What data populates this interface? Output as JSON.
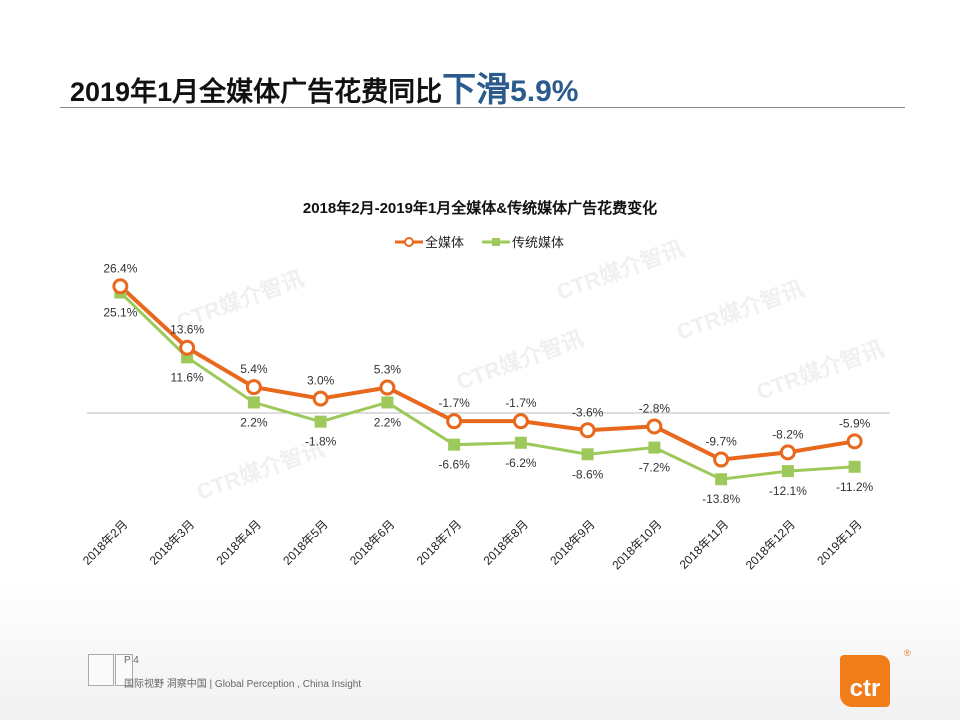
{
  "slide": {
    "title_main": "2019年1月全媒体广告花费同比",
    "title_highlight": "下滑",
    "title_value": "5.9%",
    "page": "P 4",
    "tagline": "国际视野 洞察中国 | Global Perception , China Insight",
    "logo": "ctr",
    "logo_mark": "®",
    "watermark": "CTR媒介智讯"
  },
  "chart_data": {
    "type": "line",
    "title": "2018年2月-2019年1月全媒体&传统媒体广告花费变化",
    "categories": [
      "2018年2月",
      "2018年3月",
      "2018年4月",
      "2018年5月",
      "2018年6月",
      "2018年7月",
      "2018年8月",
      "2018年9月",
      "2018年10月",
      "2018年11月",
      "2018年12月",
      "2019年1月"
    ],
    "series": [
      {
        "name": "全媒体",
        "color": "#e8691e",
        "marker": "circle",
        "values": [
          26.4,
          13.6,
          5.4,
          3.0,
          5.3,
          -1.7,
          -1.7,
          -3.6,
          -2.8,
          -9.7,
          -8.2,
          -5.9
        ],
        "labels": [
          "26.4%",
          "13.6%",
          "5.4%",
          "3.0%",
          "5.3%",
          "-1.7%",
          "-1.7%",
          "-3.6%",
          "-2.8%",
          "-9.7%",
          "-8.2%",
          "-5.9%"
        ]
      },
      {
        "name": "传统媒体",
        "color": "#9cc95a",
        "marker": "square",
        "values": [
          25.1,
          11.6,
          2.2,
          -1.8,
          2.2,
          -6.6,
          -6.2,
          -8.6,
          -7.2,
          -13.8,
          -12.1,
          -11.2
        ],
        "labels": [
          "25.1%",
          "11.6%",
          "2.2%",
          "-1.8%",
          "2.2%",
          "-6.6%",
          "-6.2%",
          "-8.6%",
          "-7.2%",
          "-13.8%",
          "-12.1%",
          "-11.2%"
        ]
      }
    ],
    "ylim": [
      -20,
      30
    ],
    "legend": "top-center",
    "grid": false,
    "xlabel": "",
    "ylabel": ""
  }
}
